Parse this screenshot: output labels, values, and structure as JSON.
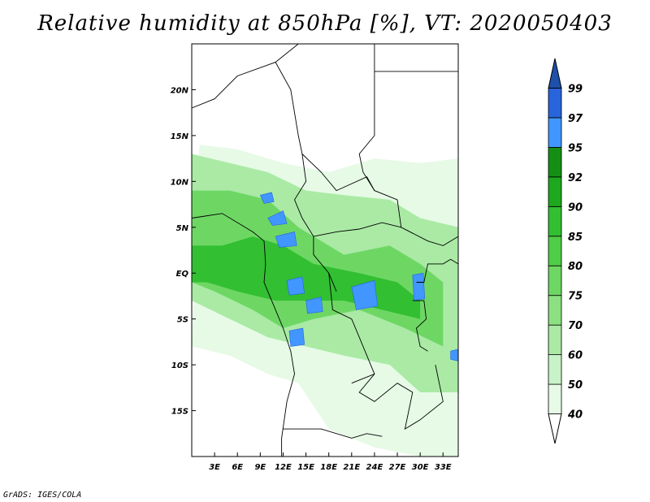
{
  "title": "Relative humidity at 850hPa [%], VT: 2020050403",
  "credit": "GrADS: IGES/COLA",
  "map": {
    "projection": "latlon",
    "lon_range": [
      0,
      35
    ],
    "lat_range": [
      -20,
      25
    ],
    "lon_ticks": [
      {
        "value": 3,
        "label": "3E"
      },
      {
        "value": 6,
        "label": "6E"
      },
      {
        "value": 9,
        "label": "9E"
      },
      {
        "value": 12,
        "label": "12E"
      },
      {
        "value": 15,
        "label": "15E"
      },
      {
        "value": 18,
        "label": "18E"
      },
      {
        "value": 21,
        "label": "21E"
      },
      {
        "value": 24,
        "label": "24E"
      },
      {
        "value": 27,
        "label": "27E"
      },
      {
        "value": 30,
        "label": "30E"
      },
      {
        "value": 33,
        "label": "33E"
      }
    ],
    "lat_ticks": [
      {
        "value": 20,
        "label": "20N"
      },
      {
        "value": 15,
        "label": "15N"
      },
      {
        "value": 10,
        "label": "10N"
      },
      {
        "value": 5,
        "label": "5N"
      },
      {
        "value": 0,
        "label": "EQ"
      },
      {
        "value": -5,
        "label": "5S"
      },
      {
        "value": -10,
        "label": "10S"
      },
      {
        "value": -15,
        "label": "15S"
      }
    ]
  },
  "colorbar": {
    "levels": [
      "40",
      "50",
      "60",
      "70",
      "75",
      "80",
      "85",
      "90",
      "92",
      "95",
      "97",
      "99"
    ],
    "colors": [
      "#ffffff",
      "#e6fae6",
      "#c8f2c8",
      "#aaeaa5",
      "#8ce082",
      "#6ed764",
      "#50cd46",
      "#32bf32",
      "#1ea81e",
      "#148f14",
      "#4196ff",
      "#2864dc",
      "#1e50aa"
    ]
  },
  "humidity_regions": [
    {
      "name": "background-moist",
      "level_color": "#e6fae6",
      "polygon": [
        [
          1,
          14
        ],
        [
          6,
          13.5
        ],
        [
          12,
          12
        ],
        [
          18,
          11
        ],
        [
          24,
          12.5
        ],
        [
          30,
          12
        ],
        [
          35,
          12.5
        ],
        [
          35,
          -20
        ],
        [
          30,
          -20
        ],
        [
          24,
          -19
        ],
        [
          18,
          -17
        ],
        [
          14,
          -12
        ],
        [
          10,
          -11
        ],
        [
          5,
          -9
        ],
        [
          0,
          -8
        ]
      ]
    },
    {
      "name": "moist-band",
      "level_color": "#aaeaa5",
      "polygon": [
        [
          0,
          13
        ],
        [
          5,
          12
        ],
        [
          10,
          11
        ],
        [
          15,
          9
        ],
        [
          20,
          8.5
        ],
        [
          26,
          8
        ],
        [
          30,
          6
        ],
        [
          35,
          5
        ],
        [
          35,
          -13
        ],
        [
          30,
          -13
        ],
        [
          26,
          -10
        ],
        [
          20,
          -9
        ],
        [
          15,
          -8
        ],
        [
          10,
          -7
        ],
        [
          5,
          -5
        ],
        [
          0,
          -3
        ]
      ]
    },
    {
      "name": "very-moist-core",
      "level_color": "#6ed764",
      "polygon": [
        [
          0,
          9
        ],
        [
          5,
          9
        ],
        [
          10,
          8
        ],
        [
          14,
          5
        ],
        [
          20,
          2
        ],
        [
          26,
          3
        ],
        [
          30,
          1
        ],
        [
          33,
          -1
        ],
        [
          33,
          -8
        ],
        [
          28,
          -6
        ],
        [
          22,
          -4
        ],
        [
          16,
          -5
        ],
        [
          12,
          -6
        ],
        [
          8,
          -4
        ],
        [
          3,
          -2
        ],
        [
          0,
          -1
        ]
      ]
    },
    {
      "name": "saturated-core",
      "level_color": "#32bf32",
      "polygon": [
        [
          0,
          3
        ],
        [
          4,
          3
        ],
        [
          8,
          4
        ],
        [
          12,
          3
        ],
        [
          16,
          1
        ],
        [
          22,
          0
        ],
        [
          27,
          -1
        ],
        [
          30,
          -3
        ],
        [
          30,
          -5
        ],
        [
          25,
          -4
        ],
        [
          20,
          -3
        ],
        [
          15,
          -3
        ],
        [
          11,
          -3
        ],
        [
          6,
          -2
        ],
        [
          2,
          -1
        ],
        [
          0,
          -1
        ]
      ]
    },
    {
      "name": "near-saturation-patch-1",
      "level_color": "#4196ff",
      "polygon": [
        [
          9,
          8.5
        ],
        [
          10.5,
          8.8
        ],
        [
          10.8,
          7.8
        ],
        [
          9.5,
          7.6
        ]
      ]
    },
    {
      "name": "near-saturation-patch-2",
      "level_color": "#4196ff",
      "polygon": [
        [
          10,
          6
        ],
        [
          12,
          6.8
        ],
        [
          12.5,
          5.4
        ],
        [
          10.6,
          5.2
        ]
      ]
    },
    {
      "name": "near-saturation-patch-3",
      "level_color": "#4196ff",
      "polygon": [
        [
          11,
          4
        ],
        [
          13.5,
          4.5
        ],
        [
          13.8,
          3
        ],
        [
          11.5,
          2.8
        ]
      ]
    },
    {
      "name": "near-saturation-patch-4",
      "level_color": "#4196ff",
      "polygon": [
        [
          12.5,
          -0.8
        ],
        [
          14.5,
          -0.4
        ],
        [
          14.8,
          -2.2
        ],
        [
          12.8,
          -2.4
        ]
      ]
    },
    {
      "name": "near-saturation-patch-5",
      "level_color": "#4196ff",
      "polygon": [
        [
          15,
          -3
        ],
        [
          17,
          -2.6
        ],
        [
          17.2,
          -4.2
        ],
        [
          15.2,
          -4.4
        ]
      ]
    },
    {
      "name": "near-saturation-patch-6",
      "level_color": "#4196ff",
      "polygon": [
        [
          21,
          -1.5
        ],
        [
          24,
          -0.8
        ],
        [
          24.4,
          -3.6
        ],
        [
          21.6,
          -4
        ]
      ]
    },
    {
      "name": "near-saturation-patch-7",
      "level_color": "#4196ff",
      "polygon": [
        [
          29,
          -0.2
        ],
        [
          30.4,
          0
        ],
        [
          30.6,
          -2.8
        ],
        [
          29.2,
          -3
        ]
      ]
    },
    {
      "name": "near-saturation-patch-8",
      "level_color": "#4196ff",
      "polygon": [
        [
          12.8,
          -6.3
        ],
        [
          14.6,
          -6
        ],
        [
          14.8,
          -7.8
        ],
        [
          13,
          -8
        ]
      ]
    },
    {
      "name": "near-saturation-patch-9",
      "level_color": "#4196ff",
      "polygon": [
        [
          34,
          -8.5
        ],
        [
          35,
          -8.3
        ],
        [
          35,
          -9.6
        ],
        [
          34,
          -9.4
        ]
      ]
    }
  ],
  "boundaries": [
    [
      [
        0,
        6
      ],
      [
        4,
        6.5
      ],
      [
        8,
        4.5
      ],
      [
        9.5,
        3.5
      ],
      [
        9.7,
        1
      ],
      [
        9.5,
        -1
      ],
      [
        11,
        -4
      ],
      [
        12,
        -6
      ],
      [
        13,
        -8.5
      ],
      [
        13.5,
        -11
      ],
      [
        12.5,
        -14
      ],
      [
        11.8,
        -18
      ],
      [
        11.8,
        -20
      ]
    ],
    [
      [
        0,
        18
      ],
      [
        3,
        19
      ],
      [
        6,
        21.5
      ],
      [
        11,
        23
      ],
      [
        14,
        25
      ]
    ],
    [
      [
        11,
        23
      ],
      [
        13,
        20
      ],
      [
        14,
        15
      ],
      [
        14.5,
        13
      ],
      [
        15,
        10
      ],
      [
        13.5,
        8
      ],
      [
        14.5,
        6
      ],
      [
        16,
        4
      ],
      [
        16,
        2
      ],
      [
        18,
        0
      ],
      [
        19,
        -2
      ]
    ],
    [
      [
        14,
        25
      ],
      [
        24,
        25
      ],
      [
        24,
        19.5
      ]
    ],
    [
      [
        24,
        19.5
      ],
      [
        24,
        15
      ],
      [
        22,
        13
      ],
      [
        22.5,
        11
      ],
      [
        24,
        9
      ],
      [
        27,
        8
      ],
      [
        27.5,
        5
      ],
      [
        31,
        3.5
      ],
      [
        33,
        3
      ],
      [
        35,
        4
      ]
    ],
    [
      [
        24,
        22
      ],
      [
        35,
        22
      ]
    ],
    [
      [
        14.5,
        13
      ],
      [
        17,
        11
      ],
      [
        19,
        9
      ],
      [
        23,
        10.5
      ],
      [
        24,
        9
      ]
    ],
    [
      [
        16,
        4
      ],
      [
        19,
        4.5
      ],
      [
        22,
        4.8
      ],
      [
        25,
        5.5
      ],
      [
        27.5,
        5
      ]
    ],
    [
      [
        18,
        0
      ],
      [
        18.5,
        -4
      ],
      [
        21,
        -5
      ],
      [
        22,
        -7
      ],
      [
        24,
        -11
      ],
      [
        22,
        -13
      ],
      [
        24,
        -14
      ],
      [
        27,
        -12
      ],
      [
        29,
        -13
      ],
      [
        28,
        -17
      ],
      [
        30,
        -16
      ],
      [
        33,
        -14
      ],
      [
        32,
        -10
      ]
    ],
    [
      [
        29.5,
        -1
      ],
      [
        30.5,
        -1
      ],
      [
        31,
        1
      ],
      [
        33,
        1
      ],
      [
        34,
        1.5
      ],
      [
        35,
        1
      ]
    ],
    [
      [
        29,
        -3
      ],
      [
        30.5,
        -3
      ],
      [
        30.8,
        -5
      ],
      [
        29.5,
        -6
      ],
      [
        30,
        -8
      ],
      [
        31,
        -8.5
      ]
    ],
    [
      [
        12,
        -17
      ],
      [
        17,
        -17
      ],
      [
        21,
        -18
      ],
      [
        23,
        -17.5
      ],
      [
        25,
        -17.8
      ]
    ],
    [
      [
        21,
        -12
      ],
      [
        24,
        -11
      ]
    ]
  ]
}
